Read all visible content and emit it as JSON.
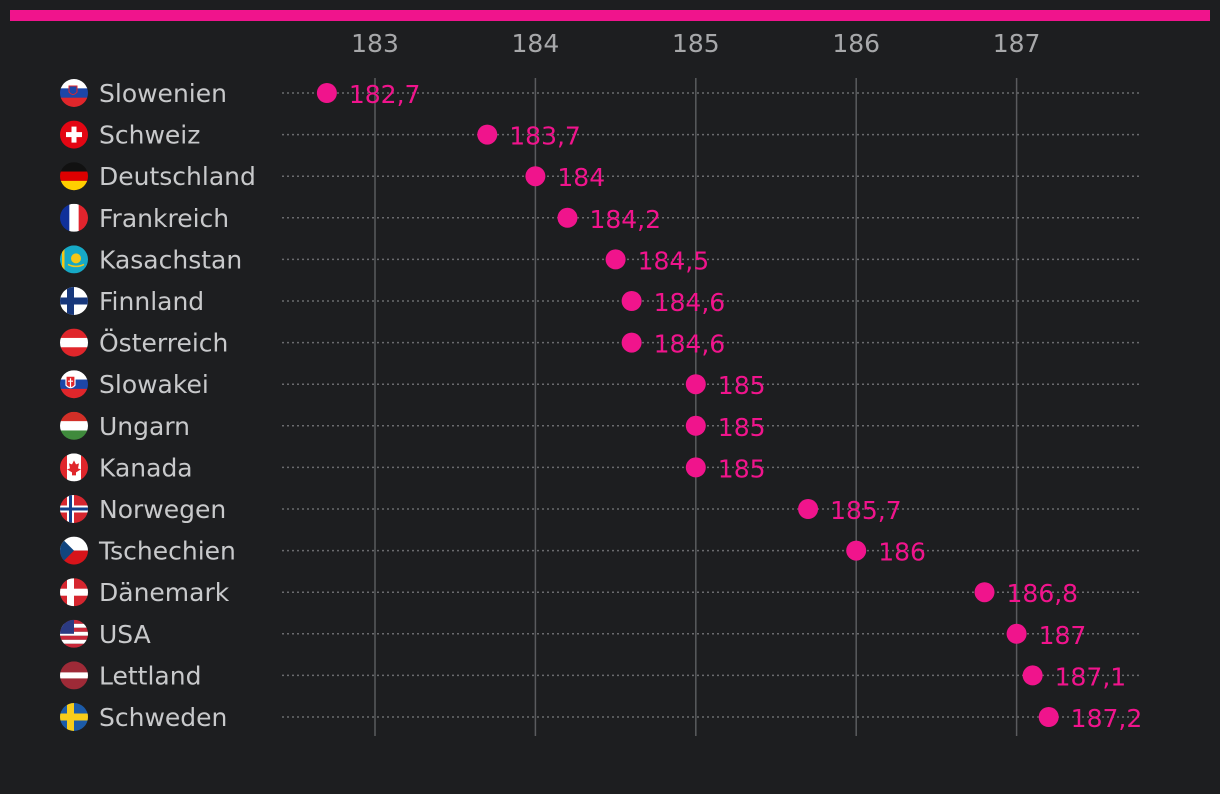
{
  "chart_data": {
    "type": "scatter",
    "title": "",
    "xlabel": "",
    "ylabel": "",
    "xlim": [
      182.58,
      187.78
    ],
    "x_ticks": [
      183,
      184,
      185,
      186,
      187
    ],
    "x_tick_labels": [
      "183",
      "184",
      "185",
      "186",
      "187"
    ],
    "categories": [
      "Slowenien",
      "Schweiz",
      "Deutschland",
      "Frankreich",
      "Kasachstan",
      "Finnland",
      "Österreich",
      "Slowakei",
      "Ungarn",
      "Kanada",
      "Norwegen",
      "Tschechien",
      "Dänemark",
      "USA",
      "Lettland",
      "Schweden"
    ],
    "values": [
      182.7,
      183.7,
      184,
      184.2,
      184.5,
      184.6,
      184.6,
      185,
      185,
      185,
      185.7,
      186,
      186.8,
      187,
      187.1,
      187.2
    ],
    "value_labels": [
      "182,7",
      "183,7",
      "184",
      "184,2",
      "184,5",
      "184,6",
      "184,6",
      "185",
      "185",
      "185",
      "185,7",
      "186",
      "186,8",
      "187",
      "187,1",
      "187,2"
    ],
    "flags": [
      "slovenia-flag-icon",
      "switzerland-flag-icon",
      "germany-flag-icon",
      "france-flag-icon",
      "kazakhstan-flag-icon",
      "finland-flag-icon",
      "austria-flag-icon",
      "slovakia-flag-icon",
      "hungary-flag-icon",
      "canada-flag-icon",
      "norway-flag-icon",
      "czechia-flag-icon",
      "denmark-flag-icon",
      "usa-flag-icon",
      "latvia-flag-icon",
      "sweden-flag-icon"
    ],
    "grid": true
  },
  "colors": {
    "accent": "#f0148c",
    "background": "#1d1e20",
    "grid": "#5a5b5e",
    "dotted_line": "#6a6b6e",
    "label": "#c8c9cb",
    "tick": "#a7a8aa"
  }
}
